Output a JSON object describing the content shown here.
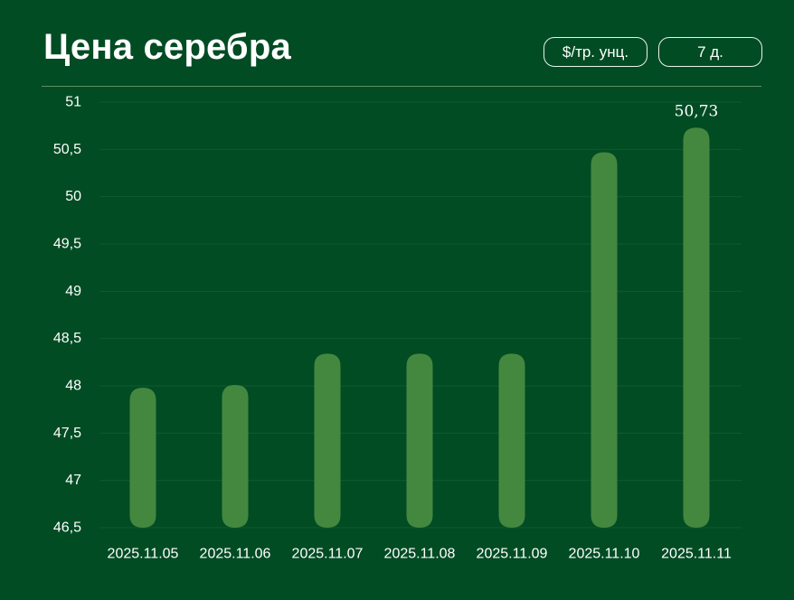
{
  "header": {
    "title": "Цена серебра",
    "unit_button": "$/тр. унц.",
    "period_button": "7 д."
  },
  "colors": {
    "background": "#024C24",
    "bar": "#44883F",
    "grid": "#0F5A2E",
    "divider": "#5C8F63"
  },
  "chart_data": {
    "type": "bar",
    "title": "Цена серебра",
    "xlabel": "",
    "ylabel": "",
    "categories": [
      "2025.11.05",
      "2025.11.06",
      "2025.11.07",
      "2025.11.08",
      "2025.11.09",
      "2025.11.10",
      "2025.11.11"
    ],
    "values": [
      47.98,
      48.01,
      48.34,
      48.34,
      48.34,
      50.47,
      50.73
    ],
    "ylim": [
      46.5,
      51
    ],
    "yticks": [
      46.5,
      47,
      47.5,
      48,
      48.5,
      49,
      49.5,
      50,
      50.5,
      51
    ],
    "ytick_labels": [
      "46,5",
      "47",
      "47,5",
      "48",
      "48,5",
      "49",
      "49,5",
      "50",
      "50,5",
      "51"
    ],
    "annotations": [
      {
        "category": "2025.11.11",
        "text": "50,73"
      }
    ],
    "grid": true,
    "legend": "none"
  }
}
